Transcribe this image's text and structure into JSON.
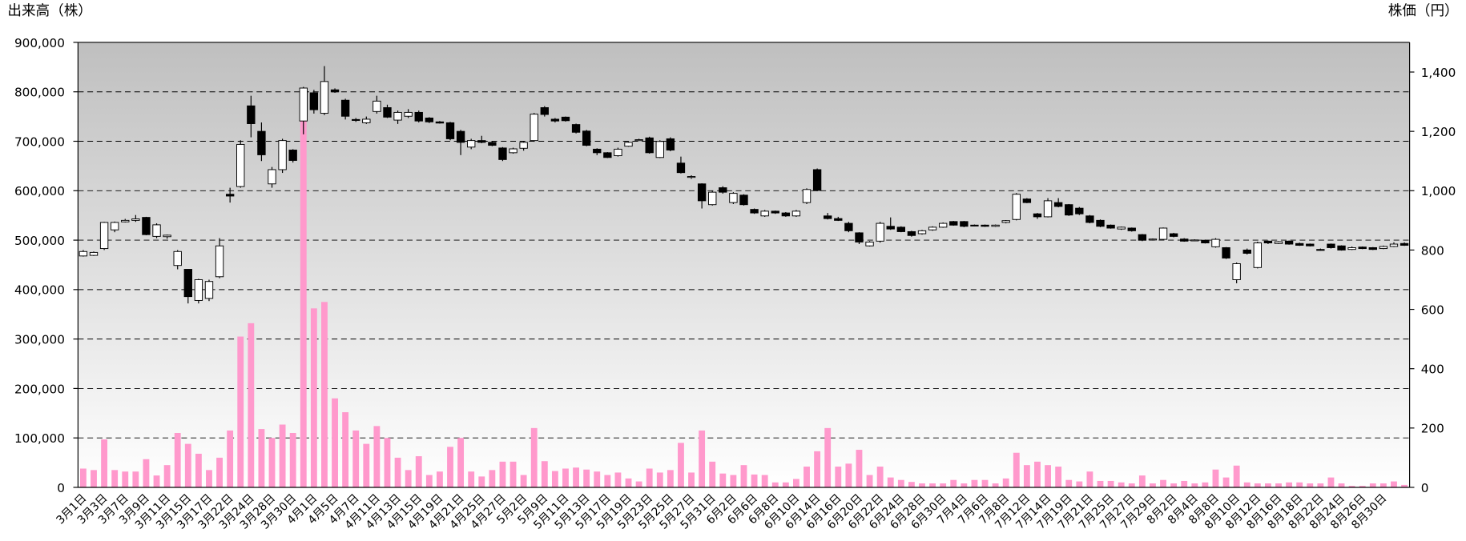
{
  "chart_data": {
    "type": "candlestick",
    "ylabel": "出来高（株）",
    "y2label": "株価（円）",
    "categories": [
      "3月1日",
      null,
      "3月3日",
      null,
      "3月7日",
      null,
      "3月9日",
      null,
      "3月11日",
      null,
      "3月15日",
      null,
      "3月17日",
      null,
      "3月22日",
      null,
      "3月24日",
      null,
      "3月28日",
      null,
      "3月30日",
      null,
      "4月1日",
      null,
      "4月5日",
      null,
      "4月7日",
      null,
      "4月11日",
      null,
      "4月13日",
      null,
      "4月15日",
      null,
      "4月19日",
      null,
      "4月21日",
      null,
      "4月25日",
      null,
      "4月27日",
      null,
      "5月2日",
      null,
      "5月9日",
      null,
      "5月11日",
      null,
      "5月13日",
      null,
      "5月17日",
      null,
      "5月19日",
      null,
      "5月23日",
      null,
      "5月25日",
      null,
      "5月27日",
      null,
      "5月31日",
      null,
      "6月2日",
      null,
      "6月6日",
      null,
      "6月8日",
      null,
      "6月10日",
      null,
      "6月14日",
      null,
      "6月16日",
      null,
      "6月20日",
      null,
      "6月22日",
      null,
      "6月24日",
      null,
      "6月28日",
      null,
      "6月30日",
      null,
      "7月4日",
      null,
      "7月6日",
      null,
      "7月8日",
      null,
      "7月12日",
      null,
      "7月14日",
      null,
      "7月19日",
      null,
      "7月21日",
      null,
      "7月25日",
      null,
      "7月27日",
      null,
      "7月29日",
      null,
      "8月2日",
      null,
      "8月4日",
      null,
      "8月8日",
      null,
      "8月10日",
      null,
      "8月12日",
      null,
      "8月16日",
      null,
      "8月18日",
      null,
      "8月22日",
      null,
      "8月24日",
      null,
      "8月26日",
      null,
      "8月30日",
      null,
      null
    ],
    "open": [
      780,
      782,
      805,
      868,
      895,
      900,
      910,
      846,
      845,
      748,
      735,
      630,
      637,
      710,
      988,
      1014,
      1286,
      1200,
      1023,
      1071,
      1137,
      1235,
      1330,
      1261,
      1340,
      1305,
      1240,
      1229,
      1267,
      1280,
      1238,
      1251,
      1264,
      1245,
      1232,
      1229,
      1200,
      1147,
      1169,
      1163,
      1144,
      1128,
      1143,
      1169,
      1280,
      1241,
      1248,
      1223,
      1201,
      1140,
      1128,
      1118,
      1150,
      1170,
      1178,
      1112,
      1175,
      1093,
      1045,
      1023,
      953,
      1010,
      960,
      985,
      937,
      915,
      931,
      925,
      915,
      960,
      1071,
      915,
      906,
      890,
      858,
      814,
      830,
      880,
      877,
      862,
      855,
      868,
      877,
      896,
      896,
      884,
      884,
      880,
      893,
      903,
      972,
      922,
      912,
      960,
      953,
      941,
      915,
      900,
      884,
      871,
      874,
      852,
      834,
      836,
      855,
      837,
      832,
      833,
      811,
      808,
      700,
      800,
      741,
      830,
      822,
      830,
      822,
      820,
      802,
      820,
      814,
      802,
      810,
      808,
      805,
      812,
      822
    ],
    "high": [
      800,
      795,
      895,
      896,
      905,
      918,
      912,
      890,
      852,
      800,
      735,
      703,
      700,
      840,
      1010,
      1170,
      1320,
      1230,
      1080,
      1175,
      1140,
      1350,
      1340,
      1420,
      1345,
      1310,
      1245,
      1250,
      1320,
      1290,
      1270,
      1275,
      1270,
      1248,
      1235,
      1232,
      1205,
      1175,
      1185,
      1166,
      1147,
      1145,
      1166,
      1262,
      1285,
      1245,
      1250,
      1226,
      1205,
      1143,
      1130,
      1145,
      1166,
      1175,
      1182,
      1170,
      1180,
      1115,
      1052,
      1025,
      1000,
      1015,
      995,
      988,
      940,
      935,
      933,
      928,
      935,
      1008,
      1075,
      925,
      912,
      895,
      860,
      830,
      895,
      910,
      880,
      865,
      868,
      880,
      893,
      898,
      898,
      886,
      886,
      886,
      901,
      992,
      975,
      925,
      975,
      975,
      955,
      945,
      918,
      903,
      886,
      879,
      876,
      854,
      839,
      876,
      858,
      840,
      836,
      835,
      840,
      810,
      758,
      805,
      828,
      832,
      830,
      832,
      825,
      822,
      805,
      822,
      816,
      812,
      812,
      810,
      815,
      826,
      826
    ],
    "low": [
      778,
      780,
      800,
      860,
      893,
      895,
      850,
      840,
      838,
      735,
      620,
      620,
      628,
      705,
      960,
      1010,
      1180,
      1100,
      1010,
      1060,
      1095,
      1190,
      1260,
      1255,
      1330,
      1240,
      1232,
      1225,
      1260,
      1245,
      1225,
      1245,
      1230,
      1228,
      1226,
      1170,
      1120,
      1140,
      1160,
      1150,
      1100,
      1125,
      1135,
      1165,
      1250,
      1230,
      1233,
      1193,
      1150,
      1120,
      1110,
      1115,
      1148,
      1168,
      1125,
      1110,
      1133,
      1058,
      1040,
      940,
      950,
      990,
      955,
      950,
      922,
      912,
      922,
      912,
      912,
      955,
      998,
      903,
      898,
      860,
      820,
      812,
      825,
      868,
      860,
      845,
      852,
      865,
      875,
      882,
      877,
      880,
      878,
      878,
      890,
      900,
      958,
      905,
      910,
      944,
      915,
      918,
      890,
      877,
      872,
      868,
      862,
      830,
      832,
      833,
      843,
      828,
      830,
      822,
      808,
      770,
      688,
      785,
      738,
      820,
      820,
      818,
      814,
      812,
      798,
      805,
      798,
      800,
      803,
      800,
      803,
      810,
      814
    ],
    "close": [
      795,
      792,
      893,
      893,
      900,
      905,
      852,
      885,
      850,
      795,
      643,
      700,
      694,
      814,
      982,
      1156,
      1226,
      1121,
      1071,
      1169,
      1102,
      1346,
      1273,
      1368,
      1333,
      1251,
      1238,
      1241,
      1302,
      1248,
      1264,
      1264,
      1235,
      1232,
      1228,
      1175,
      1163,
      1169,
      1163,
      1153,
      1105,
      1141,
      1163,
      1258,
      1257,
      1235,
      1236,
      1197,
      1153,
      1128,
      1112,
      1140,
      1163,
      1172,
      1128,
      1166,
      1137,
      1061,
      1048,
      966,
      995,
      995,
      991,
      953,
      925,
      931,
      925,
      915,
      931,
      1004,
      1001,
      906,
      900,
      865,
      827,
      827,
      890,
      871,
      862,
      849,
      865,
      877,
      890,
      884,
      880,
      882,
      880,
      884,
      899,
      988,
      960,
      912,
      966,
      947,
      918,
      922,
      893,
      880,
      874,
      877,
      865,
      833,
      837,
      874,
      846,
      830,
      834,
      824,
      836,
      773,
      754,
      789,
      824,
      824,
      828,
      820,
      816,
      814,
      800,
      808,
      800,
      808,
      805,
      802,
      812,
      820,
      816
    ],
    "volume": {
      "color": "#ff99cc",
      "values": [
        38000,
        35000,
        97000,
        35000,
        32000,
        32000,
        57000,
        24000,
        45000,
        110000,
        88000,
        68000,
        35000,
        60000,
        115000,
        305000,
        332000,
        118000,
        100000,
        127000,
        110000,
        742000,
        362000,
        375000,
        180000,
        152000,
        115000,
        88000,
        124000,
        100000,
        60000,
        35000,
        63000,
        25000,
        32000,
        82000,
        100000,
        32000,
        22000,
        35000,
        52000,
        52000,
        25000,
        120000,
        53000,
        33000,
        38000,
        40000,
        36000,
        32000,
        25000,
        30000,
        18000,
        12000,
        38000,
        30000,
        35000,
        90000,
        30000,
        115000,
        52000,
        28000,
        25000,
        45000,
        26000,
        25000,
        10000,
        10000,
        17000,
        42000,
        73000,
        120000,
        42000,
        48000,
        76000,
        25000,
        42000,
        20000,
        15000,
        11000,
        8000,
        8000,
        8000,
        15000,
        8000,
        15000,
        15000,
        8000,
        18000,
        70000,
        45000,
        52000,
        45000,
        42000,
        15000,
        12000,
        32000,
        13000,
        13000,
        10000,
        8000,
        24000,
        8000,
        15000,
        8000,
        13000,
        8000,
        10000,
        36000,
        20000,
        44000,
        10000,
        8000,
        8000,
        8000,
        10000,
        10000,
        8000,
        8000,
        20000,
        8000,
        3000,
        3000,
        8000,
        8000,
        12000,
        5000
      ]
    },
    "up_color": "#ffffff",
    "down_color": "#000000",
    "ylim": [
      0,
      900000
    ],
    "yticks": [
      0,
      {
        "value": 100000,
        "label": "100,000"
      },
      {
        "value": 200000,
        "label": "200,000"
      },
      {
        "value": 300000,
        "label": "300,000"
      },
      {
        "value": 400000,
        "label": "400,000"
      },
      {
        "value": 500000,
        "label": "500,000"
      },
      {
        "value": 600000,
        "label": "600,000"
      },
      {
        "value": 700000,
        "label": "700,000"
      },
      {
        "value": 800000,
        "label": "800,000"
      },
      {
        "value": 900000,
        "label": "900,000"
      }
    ],
    "y2lim": [
      0,
      1500
    ],
    "y2ticks": [
      0,
      200,
      400,
      600,
      800,
      {
        "value": 1000,
        "label": "1,000"
      },
      {
        "value": 1200,
        "label": "1,200"
      },
      {
        "value": 1400,
        "label": "1,400"
      }
    ],
    "grid": true
  }
}
